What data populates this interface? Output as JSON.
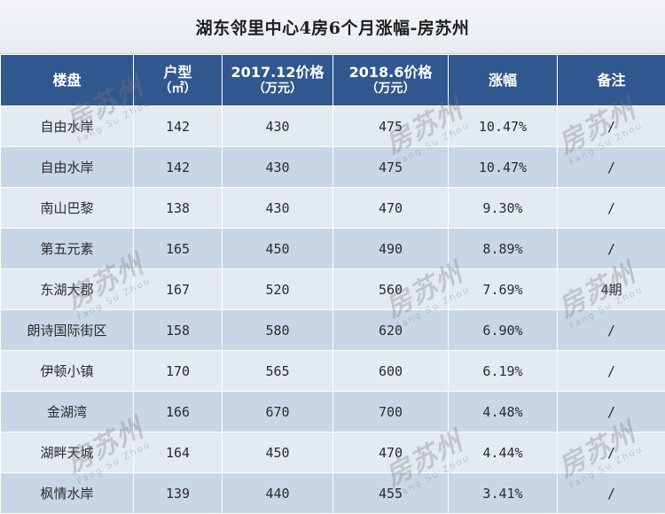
{
  "title": "湖东邻里中心4房6个月涨幅-房苏州",
  "table": {
    "headers": {
      "col1": "楼盘",
      "col2_line1": "户型",
      "col2_line2": "（㎡）",
      "col3_line1": "2017.12价格",
      "col3_line2": "（万元）",
      "col4_line1": "2018.6价格",
      "col4_line2": "（万元）",
      "col5": "涨幅",
      "col6": "备注"
    },
    "rows": [
      {
        "name": "自由水岸",
        "area": "142",
        "price_2017": "430",
        "price_2018": "475",
        "increase": "10.47%",
        "note": "/"
      },
      {
        "name": "自由水岸",
        "area": "142",
        "price_2017": "430",
        "price_2018": "475",
        "increase": "10.47%",
        "note": "/"
      },
      {
        "name": "南山巴黎",
        "area": "138",
        "price_2017": "430",
        "price_2018": "470",
        "increase": "9.30%",
        "note": "/"
      },
      {
        "name": "第五元素",
        "area": "165",
        "price_2017": "450",
        "price_2018": "490",
        "increase": "8.89%",
        "note": "/"
      },
      {
        "name": "东湖大郡",
        "area": "167",
        "price_2017": "520",
        "price_2018": "560",
        "increase": "7.69%",
        "note": "4期"
      },
      {
        "name": "朗诗国际街区",
        "area": "158",
        "price_2017": "580",
        "price_2018": "620",
        "increase": "6.90%",
        "note": "/"
      },
      {
        "name": "伊顿小镇",
        "area": "170",
        "price_2017": "565",
        "price_2018": "600",
        "increase": "6.19%",
        "note": "/"
      },
      {
        "name": "金湖湾",
        "area": "166",
        "price_2017": "670",
        "price_2018": "700",
        "increase": "4.48%",
        "note": "/"
      },
      {
        "name": "湖畔天城",
        "area": "164",
        "price_2017": "450",
        "price_2018": "470",
        "increase": "4.44%",
        "note": "/"
      },
      {
        "name": "枫情水岸",
        "area": "139",
        "price_2017": "440",
        "price_2018": "455",
        "increase": "3.41%",
        "note": "/"
      }
    ]
  },
  "watermark": {
    "text": "房苏州",
    "subtext": "Fang Su Zhou"
  }
}
